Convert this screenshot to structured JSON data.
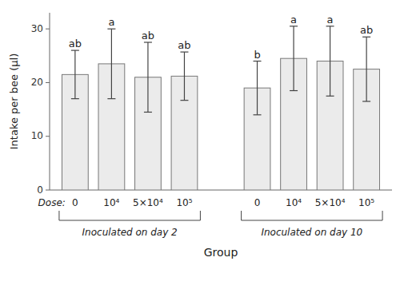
{
  "chart_data": {
    "type": "bar",
    "ylabel": "Intake per bee (µl)",
    "xlabel": "Group",
    "category_prefix": "Dose:",
    "color": "#ebebeb",
    "ylim": [
      0,
      33
    ],
    "yticks": [
      0,
      10,
      20,
      30
    ],
    "grid": false,
    "groups": [
      {
        "name": "Inoculated on day 2",
        "categories": [
          "0",
          "10⁴",
          "5×10⁴",
          "10⁵"
        ],
        "values": [
          21.5,
          23.5,
          21.0,
          21.2
        ],
        "errors": [
          4.5,
          6.5,
          6.5,
          4.5
        ],
        "annotations": [
          "ab",
          "a",
          "ab",
          "ab"
        ]
      },
      {
        "name": "Inoculated on day 10",
        "categories": [
          "0",
          "10⁴",
          "5×10⁴",
          "10⁵"
        ],
        "values": [
          19.0,
          24.5,
          24.0,
          22.5
        ],
        "errors": [
          5.0,
          6.0,
          6.5,
          6.0
        ],
        "annotations": [
          "b",
          "a",
          "a",
          "ab"
        ]
      }
    ]
  }
}
